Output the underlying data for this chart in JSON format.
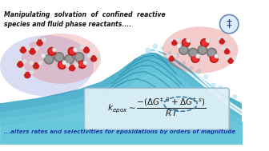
{
  "title_top": "Manipulating  solvation  of  confined  reactive\nspecies and fluid phase reactants....",
  "title_bottom": "...alters rates and selectivities for epoxidations by orders of magnitude",
  "bg_color": "#ffffff",
  "top_text_color": "#111111",
  "bottom_text_color": "#1a3aaa",
  "wave_main": "#4ab0cc",
  "wave_light": "#7ccfe0",
  "wave_dark": "#2a8aaa",
  "wave_foam": "#c8eaf5",
  "eq_box_fill": "#dff0f8",
  "eq_box_edge": "#99bbcc",
  "ts_circle_fill": "#ddeeff",
  "ts_circle_edge": "#6688bb",
  "left_blob_blue": "#5566cc",
  "left_blob_red": "#dd4444",
  "right_blob_red": "#dd4444",
  "carbon_color": "#888888",
  "oxygen_color": "#cc2222",
  "hydrogen_color": "#e8e8e8"
}
